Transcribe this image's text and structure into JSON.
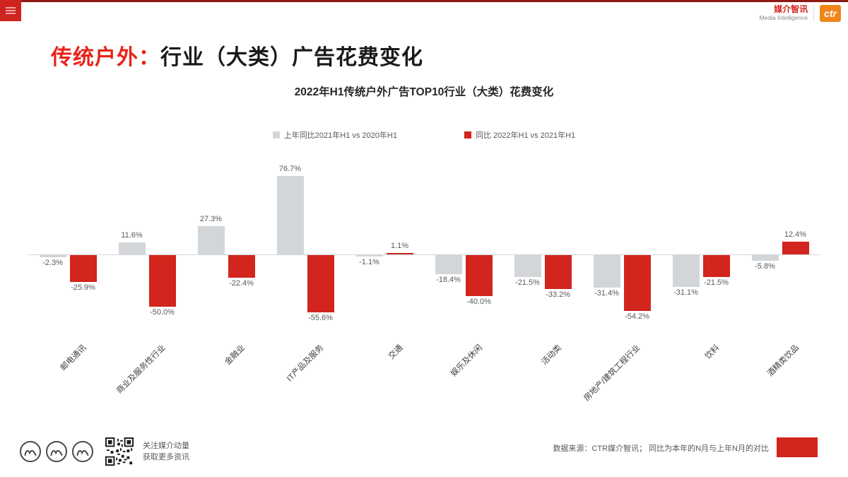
{
  "header": {
    "brand_cn": "媒介智讯",
    "brand_en": "Media Intelligence",
    "logo_text": "ctr"
  },
  "title": {
    "highlight": "传统户外：",
    "rest": "行业（大类）广告花费变化"
  },
  "chart_data": {
    "type": "bar",
    "title": "2022年H1传统户外广告TOP10行业（大类）花费变化",
    "legend_position": "top",
    "grid": false,
    "ylim": [
      -60,
      85
    ],
    "value_suffix": "%",
    "legend": [
      {
        "label": "上年同比2021年H1 vs 2020年H1",
        "color": "#d3d6d9"
      },
      {
        "label": "同比 2022年H1 vs 2021年H1",
        "color": "#d1251d"
      }
    ],
    "categories": [
      "邮电通讯",
      "商业及服务性行业",
      "金融业",
      "IT产品及服务",
      "交通",
      "娱乐及休闲",
      "活动类",
      "房地产/建筑工程行业",
      "饮料",
      "酒精类饮品"
    ],
    "series": [
      {
        "name": "上年同比2021年H1 vs 2020年H1",
        "color": "#d3d6d9",
        "values": [
          -2.3,
          11.6,
          27.3,
          76.7,
          -1.1,
          -18.4,
          -21.5,
          -31.4,
          -31.1,
          -5.8
        ],
        "labels": [
          "-2.3%",
          "11.6%",
          "27.3%",
          "76.7%",
          "-1.1%",
          "-18.4%",
          "-21.5%",
          "-31.4%",
          "-31.1%",
          "-5.8%"
        ]
      },
      {
        "name": "同比 2022年H1 vs 2021年H1",
        "color": "#d1251d",
        "values": [
          -25.9,
          -50.0,
          -22.4,
          -55.6,
          1.1,
          -40.0,
          -33.2,
          -54.2,
          -21.5,
          12.4
        ],
        "labels": [
          "-25.9%",
          "-50.0%",
          "-22.4%",
          "-55.6%",
          "1.1%",
          "-40.0%",
          "-33.2%",
          "-54.2%",
          "-21.5%",
          "12.4%"
        ]
      }
    ]
  },
  "footer": {
    "social_icons": [
      "media-logo-icon",
      "media-logo-icon",
      "media-logo-icon"
    ],
    "qr_icon": "qr-code",
    "qr_caption_line1": "关注媒介动量",
    "qr_caption_line2": "获取更多资讯",
    "source_note": "数据来源：CTR媒介智讯；  同比为本年的N月与上年N月的对比"
  }
}
